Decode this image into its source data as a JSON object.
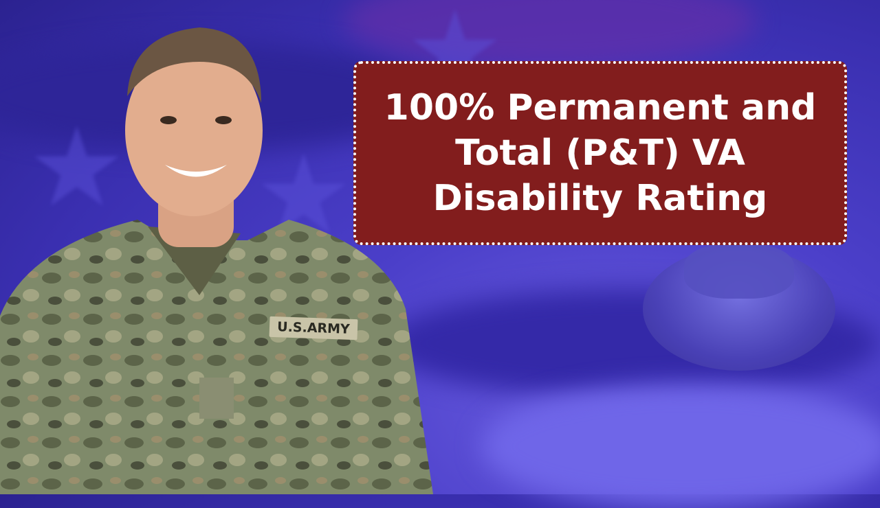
{
  "title": {
    "lines": [
      "100% Permanent and",
      "Total (P&T) VA",
      "Disability Rating"
    ]
  },
  "photo": {
    "nametape": "U.S.ARMY"
  },
  "colors": {
    "title_box": "#821d1d",
    "title_text": "#ffffff",
    "background": "#4b3fc9"
  }
}
